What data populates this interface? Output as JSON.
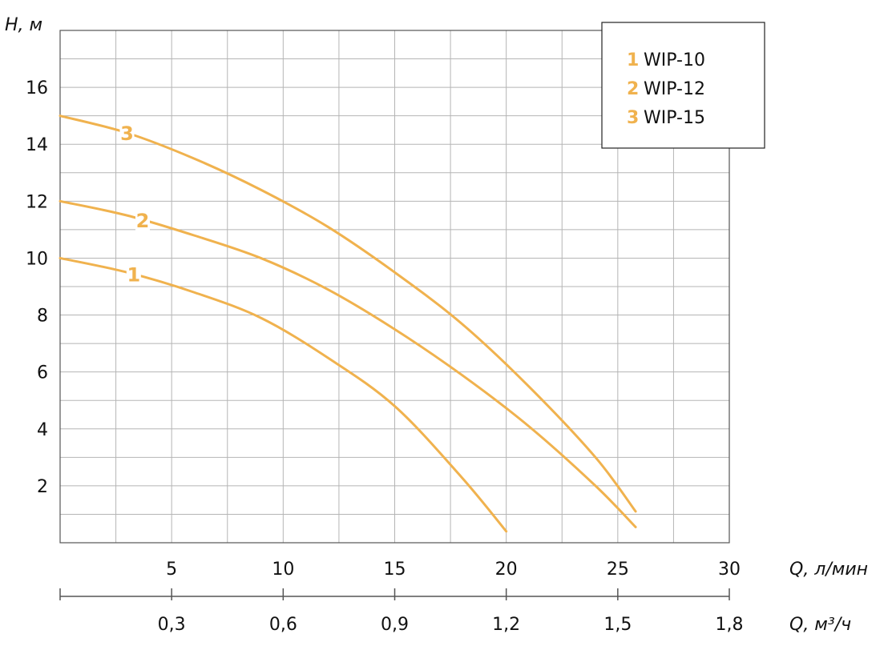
{
  "chart_data": {
    "type": "line",
    "y_label": "H, м",
    "x_label_primary": "Q, л/мин",
    "x_label_secondary": "Q, м³/ч",
    "ylim": [
      0,
      18
    ],
    "xlim": [
      0,
      30
    ],
    "y_ticks": [
      2,
      4,
      6,
      8,
      10,
      12,
      14,
      16
    ],
    "y_tick_labels": [
      "2",
      "4",
      "6",
      "8",
      "10",
      "12",
      "14",
      "16"
    ],
    "x_ticks": [
      5,
      10,
      15,
      20,
      25,
      30
    ],
    "x_tick_labels": [
      "5",
      "10",
      "15",
      "20",
      "25",
      "30"
    ],
    "x2_ticks": [
      5,
      10,
      15,
      20,
      25,
      30
    ],
    "x2_tick_labels": [
      "0,3",
      "0,6",
      "0,9",
      "1,2",
      "1,5",
      "1,8"
    ],
    "grid": true,
    "legend_position": "top-right",
    "series": [
      {
        "name": "WIP-10",
        "marker": "1",
        "color": "#F0B24E",
        "x": [
          0,
          3,
          6,
          9,
          12,
          15,
          18,
          20
        ],
        "y": [
          10.0,
          9.5,
          8.8,
          7.9,
          6.5,
          4.8,
          2.3,
          0.4
        ]
      },
      {
        "name": "WIP-12",
        "marker": "2",
        "color": "#F0B24E",
        "x": [
          0,
          3,
          6,
          9,
          12,
          15,
          18,
          21,
          24,
          25.8
        ],
        "y": [
          12.0,
          11.5,
          10.8,
          10.0,
          8.9,
          7.5,
          5.9,
          4.1,
          2.0,
          0.55
        ]
      },
      {
        "name": "WIP-15",
        "marker": "3",
        "color": "#F0B24E",
        "x": [
          0,
          3,
          6,
          9,
          12,
          15,
          18,
          21,
          24,
          25.8
        ],
        "y": [
          15.0,
          14.4,
          13.5,
          12.4,
          11.1,
          9.5,
          7.7,
          5.5,
          3.0,
          1.1
        ]
      }
    ]
  }
}
